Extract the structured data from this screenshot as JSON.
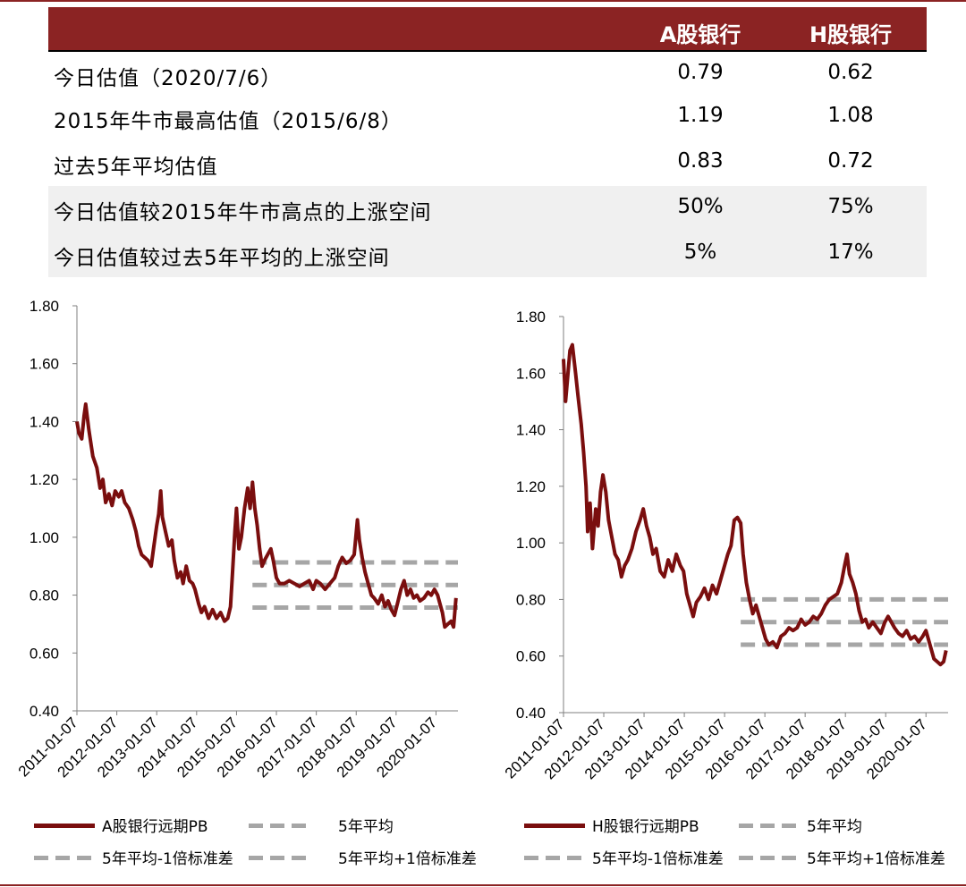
{
  "table": {
    "headers": [
      "A股银行",
      "H股银行"
    ],
    "rows": [
      {
        "label": "今日估值（2020/7/6）",
        "a": "0.79",
        "h": "0.62"
      },
      {
        "label": "2015年牛市最高估值（2015/6/8）",
        "a": "1.19",
        "h": "1.08"
      },
      {
        "label": "过去5年平均估值",
        "a": "0.83",
        "h": "0.72"
      },
      {
        "label": "今日估值较2015年牛市高点的上涨空间",
        "a": "50%",
        "h": "75%"
      },
      {
        "label": "今日估值较过去5年平均的上涨空间",
        "a": "5%",
        "h": "17%"
      }
    ]
  },
  "legend_a": {
    "series": "A股银行远期PB",
    "avg": "5年平均",
    "minus": "5年平均-1倍标准差",
    "plus": "5年平均+1倍标准差"
  },
  "legend_h": {
    "series": "H股银行远期PB",
    "avg": "5年平均",
    "minus": "5年平均-1倍标准差",
    "plus": "5年平均+1倍标准差"
  },
  "colors": {
    "series": "#7a0e0e",
    "band": "#a6a6a6",
    "header": "#8b2323"
  },
  "chart_data": [
    {
      "type": "line",
      "x_ticks": [
        "2011-01-07",
        "2012-01-07",
        "2013-01-07",
        "2014-01-07",
        "2015-01-07",
        "2016-01-07",
        "2017-01-07",
        "2018-01-07",
        "2019-01-07",
        "2020-01-07"
      ],
      "y_ticks": [
        "0.40",
        "0.60",
        "0.80",
        "1.00",
        "1.20",
        "1.40",
        "1.60",
        "1.80"
      ],
      "ylim": [
        0.4,
        1.8
      ],
      "xlim": [
        2011.0,
        2020.55
      ],
      "series": [
        {
          "name": "A股银行远期PB",
          "points": [
            [
              2011.0,
              1.4
            ],
            [
              2011.05,
              1.36
            ],
            [
              2011.12,
              1.34
            ],
            [
              2011.18,
              1.42
            ],
            [
              2011.22,
              1.46
            ],
            [
              2011.3,
              1.37
            ],
            [
              2011.4,
              1.28
            ],
            [
              2011.5,
              1.24
            ],
            [
              2011.58,
              1.17
            ],
            [
              2011.65,
              1.2
            ],
            [
              2011.72,
              1.12
            ],
            [
              2011.8,
              1.15
            ],
            [
              2011.88,
              1.11
            ],
            [
              2011.96,
              1.16
            ],
            [
              2012.05,
              1.14
            ],
            [
              2012.12,
              1.16
            ],
            [
              2012.2,
              1.12
            ],
            [
              2012.3,
              1.1
            ],
            [
              2012.4,
              1.06
            ],
            [
              2012.48,
              1.02
            ],
            [
              2012.55,
              0.97
            ],
            [
              2012.62,
              0.94
            ],
            [
              2012.7,
              0.93
            ],
            [
              2012.78,
              0.92
            ],
            [
              2012.86,
              0.9
            ],
            [
              2012.92,
              0.96
            ],
            [
              2013.0,
              1.04
            ],
            [
              2013.05,
              1.08
            ],
            [
              2013.1,
              1.16
            ],
            [
              2013.14,
              1.07
            ],
            [
              2013.22,
              1.02
            ],
            [
              2013.3,
              0.97
            ],
            [
              2013.38,
              0.99
            ],
            [
              2013.44,
              0.92
            ],
            [
              2013.52,
              0.86
            ],
            [
              2013.6,
              0.88
            ],
            [
              2013.66,
              0.84
            ],
            [
              2013.74,
              0.9
            ],
            [
              2013.82,
              0.85
            ],
            [
              2013.9,
              0.84
            ],
            [
              2013.96,
              0.82
            ],
            [
              2014.05,
              0.77
            ],
            [
              2014.12,
              0.74
            ],
            [
              2014.2,
              0.76
            ],
            [
              2014.3,
              0.72
            ],
            [
              2014.4,
              0.75
            ],
            [
              2014.5,
              0.72
            ],
            [
              2014.6,
              0.74
            ],
            [
              2014.7,
              0.71
            ],
            [
              2014.78,
              0.72
            ],
            [
              2014.85,
              0.76
            ],
            [
              2014.9,
              0.88
            ],
            [
              2014.96,
              1.02
            ],
            [
              2015.0,
              1.1
            ],
            [
              2015.06,
              0.96
            ],
            [
              2015.12,
              1.0
            ],
            [
              2015.2,
              1.1
            ],
            [
              2015.28,
              1.17
            ],
            [
              2015.34,
              1.1
            ],
            [
              2015.4,
              1.19
            ],
            [
              2015.46,
              1.1
            ],
            [
              2015.52,
              1.04
            ],
            [
              2015.58,
              0.96
            ],
            [
              2015.64,
              0.9
            ],
            [
              2015.7,
              0.92
            ],
            [
              2015.78,
              0.94
            ],
            [
              2015.86,
              0.96
            ],
            [
              2015.92,
              0.92
            ],
            [
              2016.0,
              0.86
            ],
            [
              2016.08,
              0.84
            ],
            [
              2016.2,
              0.84
            ],
            [
              2016.32,
              0.85
            ],
            [
              2016.45,
              0.84
            ],
            [
              2016.58,
              0.83
            ],
            [
              2016.7,
              0.84
            ],
            [
              2016.82,
              0.85
            ],
            [
              2016.92,
              0.82
            ],
            [
              2017.0,
              0.85
            ],
            [
              2017.1,
              0.84
            ],
            [
              2017.22,
              0.82
            ],
            [
              2017.34,
              0.84
            ],
            [
              2017.46,
              0.86
            ],
            [
              2017.55,
              0.9
            ],
            [
              2017.65,
              0.93
            ],
            [
              2017.75,
              0.91
            ],
            [
              2017.85,
              0.92
            ],
            [
              2017.95,
              0.94
            ],
            [
              2018.03,
              1.06
            ],
            [
              2018.08,
              0.99
            ],
            [
              2018.15,
              0.93
            ],
            [
              2018.22,
              0.88
            ],
            [
              2018.3,
              0.84
            ],
            [
              2018.38,
              0.8
            ],
            [
              2018.45,
              0.79
            ],
            [
              2018.55,
              0.77
            ],
            [
              2018.64,
              0.8
            ],
            [
              2018.72,
              0.76
            ],
            [
              2018.8,
              0.78
            ],
            [
              2018.88,
              0.75
            ],
            [
              2018.96,
              0.73
            ],
            [
              2019.05,
              0.78
            ],
            [
              2019.12,
              0.82
            ],
            [
              2019.2,
              0.85
            ],
            [
              2019.28,
              0.8
            ],
            [
              2019.36,
              0.82
            ],
            [
              2019.44,
              0.79
            ],
            [
              2019.52,
              0.8
            ],
            [
              2019.6,
              0.78
            ],
            [
              2019.7,
              0.79
            ],
            [
              2019.8,
              0.81
            ],
            [
              2019.88,
              0.8
            ],
            [
              2019.96,
              0.82
            ],
            [
              2020.04,
              0.8
            ],
            [
              2020.1,
              0.77
            ],
            [
              2020.16,
              0.74
            ],
            [
              2020.22,
              0.69
            ],
            [
              2020.3,
              0.7
            ],
            [
              2020.38,
              0.71
            ],
            [
              2020.44,
              0.69
            ],
            [
              2020.5,
              0.79
            ]
          ]
        }
      ],
      "avg": 0.835,
      "avg_plus_1sd": 0.913,
      "avg_minus_1sd": 0.757,
      "band_from": 2015.4
    },
    {
      "type": "line",
      "x_ticks": [
        "2011-01-07",
        "2012-01-07",
        "2013-01-07",
        "2014-01-07",
        "2015-01-07",
        "2016-01-07",
        "2017-01-07",
        "2018-01-07",
        "2019-01-07",
        "2020-01-07"
      ],
      "y_ticks": [
        "0.40",
        "0.60",
        "0.80",
        "1.00",
        "1.20",
        "1.40",
        "1.60",
        "1.80"
      ],
      "ylim": [
        0.4,
        1.8
      ],
      "xlim": [
        2011.0,
        2020.55
      ],
      "series": [
        {
          "name": "H股银行远期PB",
          "points": [
            [
              2011.0,
              1.65
            ],
            [
              2011.05,
              1.5
            ],
            [
              2011.1,
              1.58
            ],
            [
              2011.16,
              1.68
            ],
            [
              2011.22,
              1.7
            ],
            [
              2011.3,
              1.6
            ],
            [
              2011.36,
              1.52
            ],
            [
              2011.44,
              1.42
            ],
            [
              2011.5,
              1.32
            ],
            [
              2011.56,
              1.2
            ],
            [
              2011.6,
              1.04
            ],
            [
              2011.66,
              1.14
            ],
            [
              2011.72,
              0.98
            ],
            [
              2011.8,
              1.12
            ],
            [
              2011.86,
              1.06
            ],
            [
              2011.92,
              1.18
            ],
            [
              2011.98,
              1.24
            ],
            [
              2012.05,
              1.18
            ],
            [
              2012.12,
              1.08
            ],
            [
              2012.2,
              1.02
            ],
            [
              2012.28,
              0.96
            ],
            [
              2012.36,
              0.94
            ],
            [
              2012.44,
              0.88
            ],
            [
              2012.52,
              0.92
            ],
            [
              2012.6,
              0.94
            ],
            [
              2012.7,
              0.98
            ],
            [
              2012.8,
              1.04
            ],
            [
              2012.9,
              1.08
            ],
            [
              2012.98,
              1.12
            ],
            [
              2013.06,
              1.06
            ],
            [
              2013.14,
              1.02
            ],
            [
              2013.22,
              0.96
            ],
            [
              2013.3,
              0.98
            ],
            [
              2013.4,
              0.9
            ],
            [
              2013.5,
              0.88
            ],
            [
              2013.6,
              0.94
            ],
            [
              2013.7,
              0.9
            ],
            [
              2013.8,
              0.96
            ],
            [
              2013.9,
              0.92
            ],
            [
              2013.98,
              0.9
            ],
            [
              2014.06,
              0.82
            ],
            [
              2014.14,
              0.78
            ],
            [
              2014.22,
              0.74
            ],
            [
              2014.3,
              0.79
            ],
            [
              2014.4,
              0.81
            ],
            [
              2014.5,
              0.84
            ],
            [
              2014.6,
              0.8
            ],
            [
              2014.7,
              0.85
            ],
            [
              2014.8,
              0.82
            ],
            [
              2014.9,
              0.87
            ],
            [
              2015.0,
              0.92
            ],
            [
              2015.08,
              0.96
            ],
            [
              2015.16,
              0.99
            ],
            [
              2015.24,
              1.08
            ],
            [
              2015.32,
              1.09
            ],
            [
              2015.4,
              1.07
            ],
            [
              2015.46,
              0.96
            ],
            [
              2015.54,
              0.86
            ],
            [
              2015.62,
              0.8
            ],
            [
              2015.7,
              0.75
            ],
            [
              2015.78,
              0.78
            ],
            [
              2015.86,
              0.74
            ],
            [
              2015.94,
              0.7
            ],
            [
              2016.02,
              0.66
            ],
            [
              2016.1,
              0.64
            ],
            [
              2016.2,
              0.65
            ],
            [
              2016.3,
              0.63
            ],
            [
              2016.4,
              0.67
            ],
            [
              2016.5,
              0.68
            ],
            [
              2016.6,
              0.7
            ],
            [
              2016.7,
              0.69
            ],
            [
              2016.8,
              0.7
            ],
            [
              2016.9,
              0.73
            ],
            [
              2017.0,
              0.71
            ],
            [
              2017.1,
              0.72
            ],
            [
              2017.2,
              0.74
            ],
            [
              2017.3,
              0.73
            ],
            [
              2017.4,
              0.75
            ],
            [
              2017.5,
              0.78
            ],
            [
              2017.6,
              0.8
            ],
            [
              2017.7,
              0.81
            ],
            [
              2017.8,
              0.82
            ],
            [
              2017.9,
              0.86
            ],
            [
              2017.98,
              0.92
            ],
            [
              2018.04,
              0.96
            ],
            [
              2018.1,
              0.89
            ],
            [
              2018.18,
              0.86
            ],
            [
              2018.26,
              0.82
            ],
            [
              2018.34,
              0.76
            ],
            [
              2018.42,
              0.72
            ],
            [
              2018.5,
              0.73
            ],
            [
              2018.58,
              0.7
            ],
            [
              2018.68,
              0.72
            ],
            [
              2018.78,
              0.7
            ],
            [
              2018.88,
              0.68
            ],
            [
              2018.98,
              0.72
            ],
            [
              2019.06,
              0.74
            ],
            [
              2019.14,
              0.72
            ],
            [
              2019.22,
              0.7
            ],
            [
              2019.32,
              0.68
            ],
            [
              2019.42,
              0.67
            ],
            [
              2019.52,
              0.69
            ],
            [
              2019.62,
              0.66
            ],
            [
              2019.72,
              0.67
            ],
            [
              2019.82,
              0.65
            ],
            [
              2019.92,
              0.67
            ],
            [
              2020.0,
              0.69
            ],
            [
              2020.06,
              0.66
            ],
            [
              2020.12,
              0.63
            ],
            [
              2020.2,
              0.59
            ],
            [
              2020.28,
              0.58
            ],
            [
              2020.36,
              0.57
            ],
            [
              2020.44,
              0.58
            ],
            [
              2020.5,
              0.62
            ]
          ]
        }
      ],
      "avg": 0.72,
      "avg_plus_1sd": 0.8,
      "avg_minus_1sd": 0.64,
      "band_from": 2015.4
    }
  ]
}
